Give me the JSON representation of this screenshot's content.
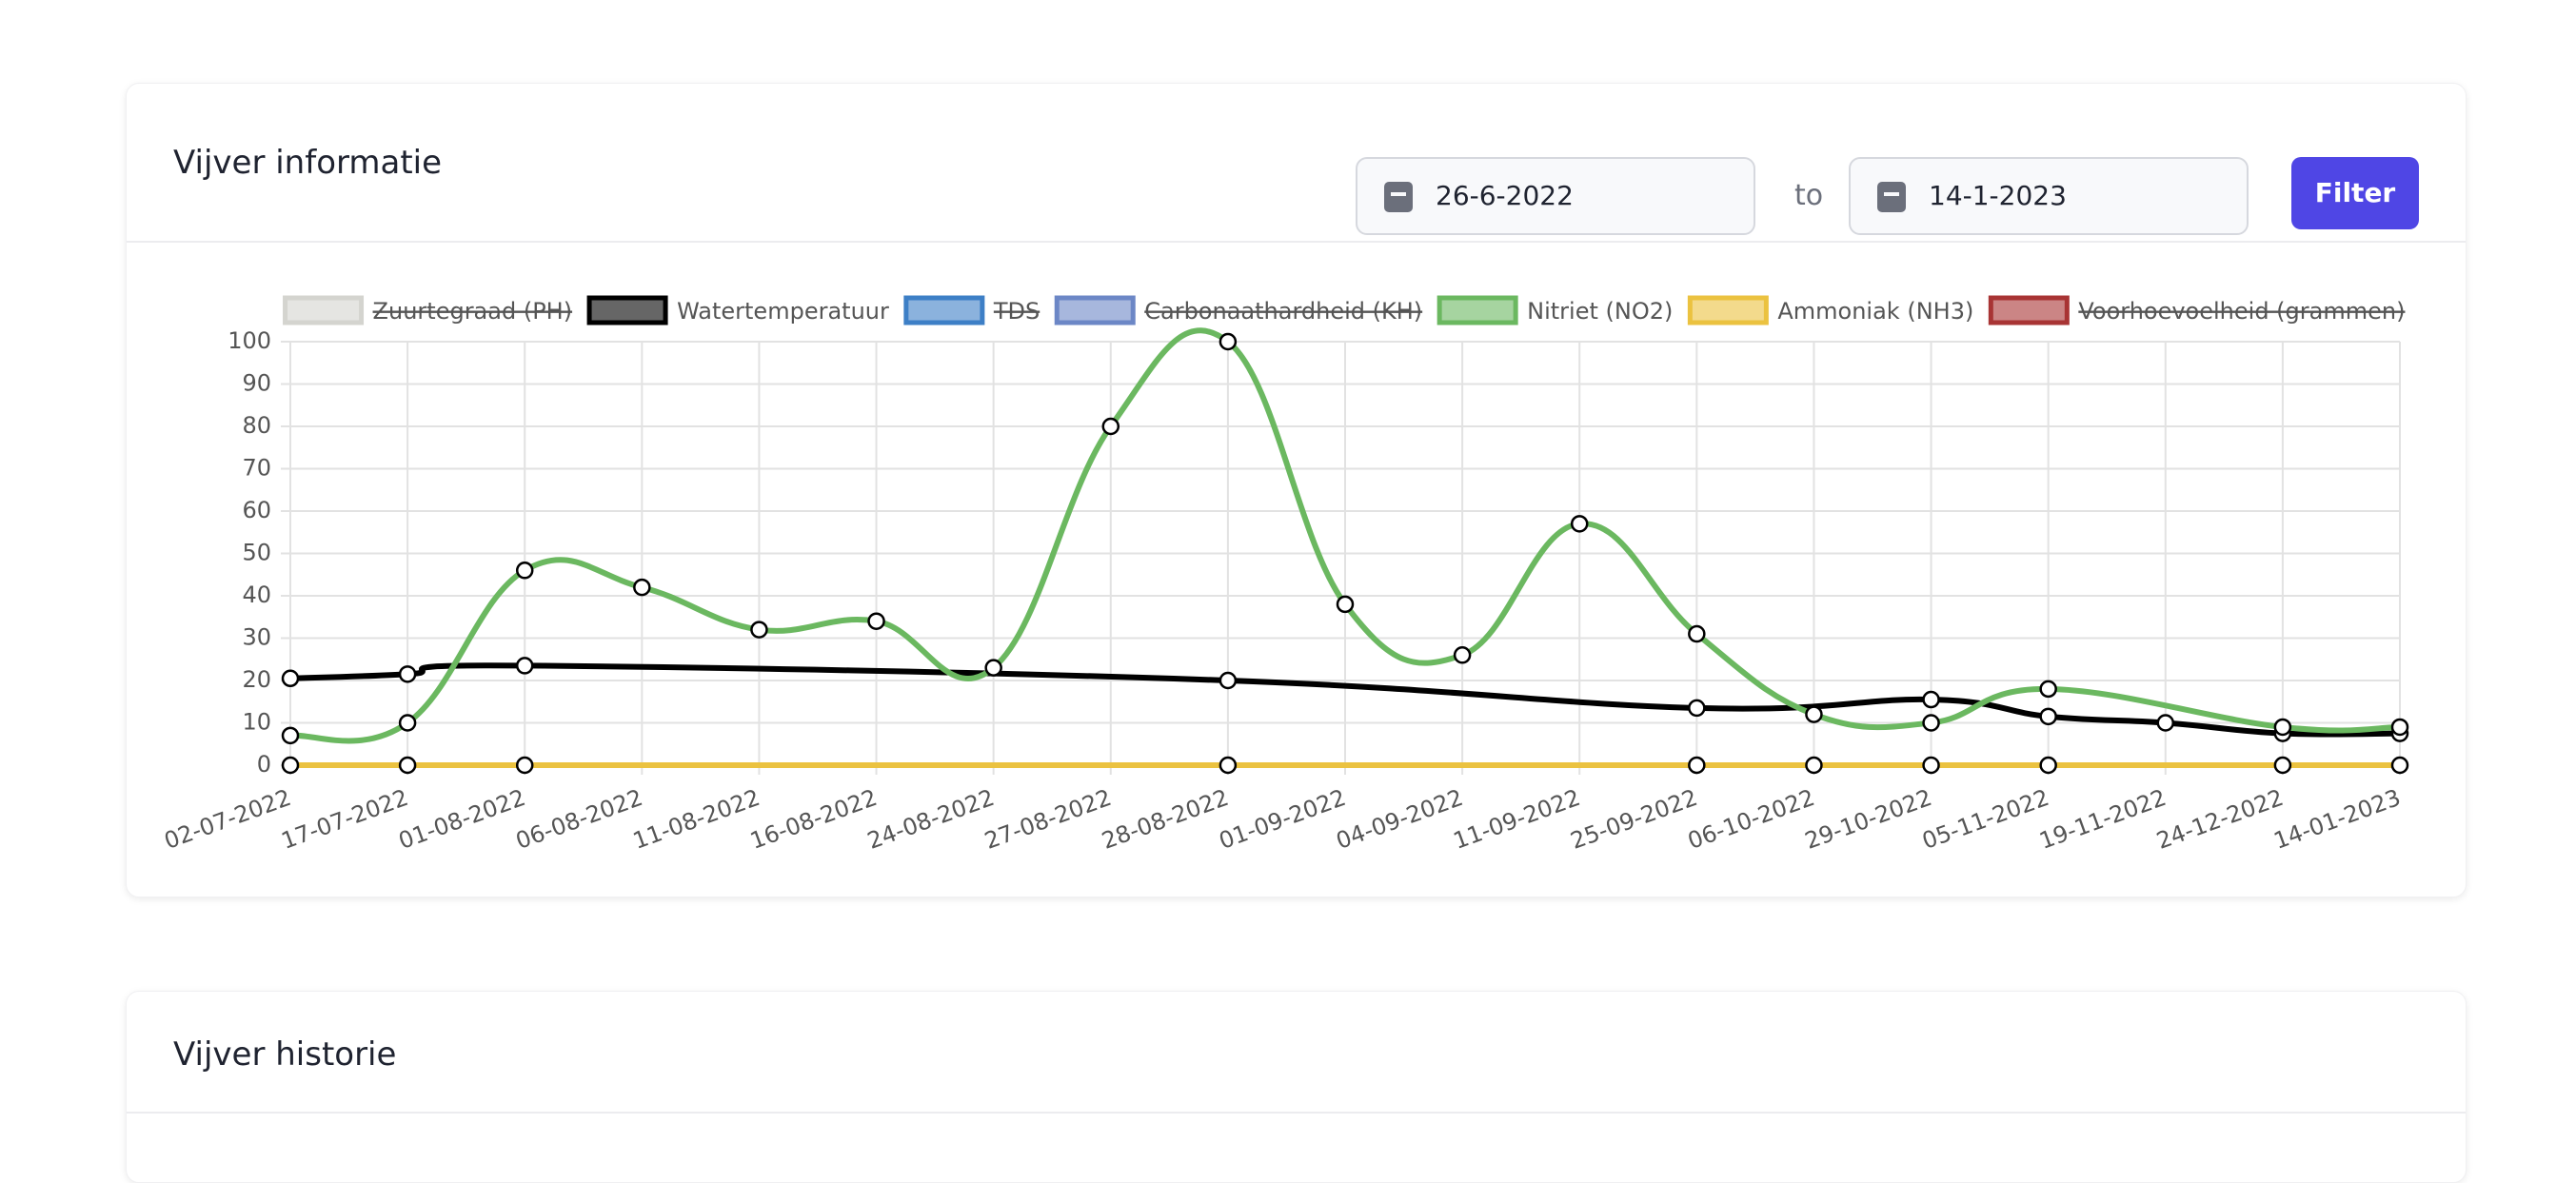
{
  "card": {
    "title": "Vijver informatie",
    "date_from": "26-6-2022",
    "to": "to",
    "date_to": "14-1-2023",
    "button": "Filter"
  },
  "chart_data": {
    "type": "line",
    "categories": [
      "02-07-2022",
      "17-07-2022",
      "01-08-2022",
      "06-08-2022",
      "11-08-2022",
      "16-08-2022",
      "24-08-2022",
      "27-08-2022",
      "28-08-2022",
      "01-09-2022",
      "04-09-2022",
      "11-09-2022",
      "25-09-2022",
      "06-10-2022",
      "29-10-2022",
      "05-11-2022",
      "19-11-2022",
      "24-12-2022",
      "14-01-2023"
    ],
    "series": [
      {
        "name": "Zuurtegraad (PH)",
        "color": "#d4d4cf",
        "hidden": true
      },
      {
        "name": "Watertemperatuur",
        "color": "#000000",
        "values": [
          20.5,
          21.5,
          23.5,
          null,
          null,
          null,
          null,
          null,
          20,
          null,
          null,
          null,
          13.5,
          null,
          15.5,
          11.5,
          10,
          7.5,
          7.5
        ]
      },
      {
        "name": "TDS",
        "color": "#3d7fc6",
        "hidden": true
      },
      {
        "name": "Carbonaathardheid (KH)",
        "color": "#6c87c6",
        "hidden": true
      },
      {
        "name": "Nitriet (NO2)",
        "color": "#6bb860",
        "values": [
          7,
          10,
          46,
          42,
          32,
          34,
          23,
          80,
          100,
          38,
          26,
          57,
          31,
          12,
          10,
          18,
          null,
          9,
          9
        ]
      },
      {
        "name": "Ammoniak (NH3)",
        "color": "#ebc240",
        "values": [
          0,
          0,
          0,
          null,
          null,
          null,
          null,
          null,
          0,
          null,
          null,
          null,
          0,
          0,
          0,
          0,
          null,
          0,
          0
        ]
      },
      {
        "name": "Voorhoevoelheid (grammen)",
        "color": "#a83434",
        "hidden": true
      }
    ],
    "ylim": [
      0,
      100
    ],
    "yticks": [
      0,
      10,
      20,
      30,
      40,
      50,
      60,
      70,
      80,
      90,
      100
    ],
    "grid": true,
    "span_gaps": true,
    "legend": "top"
  },
  "history": {
    "title": "Vijver historie"
  }
}
